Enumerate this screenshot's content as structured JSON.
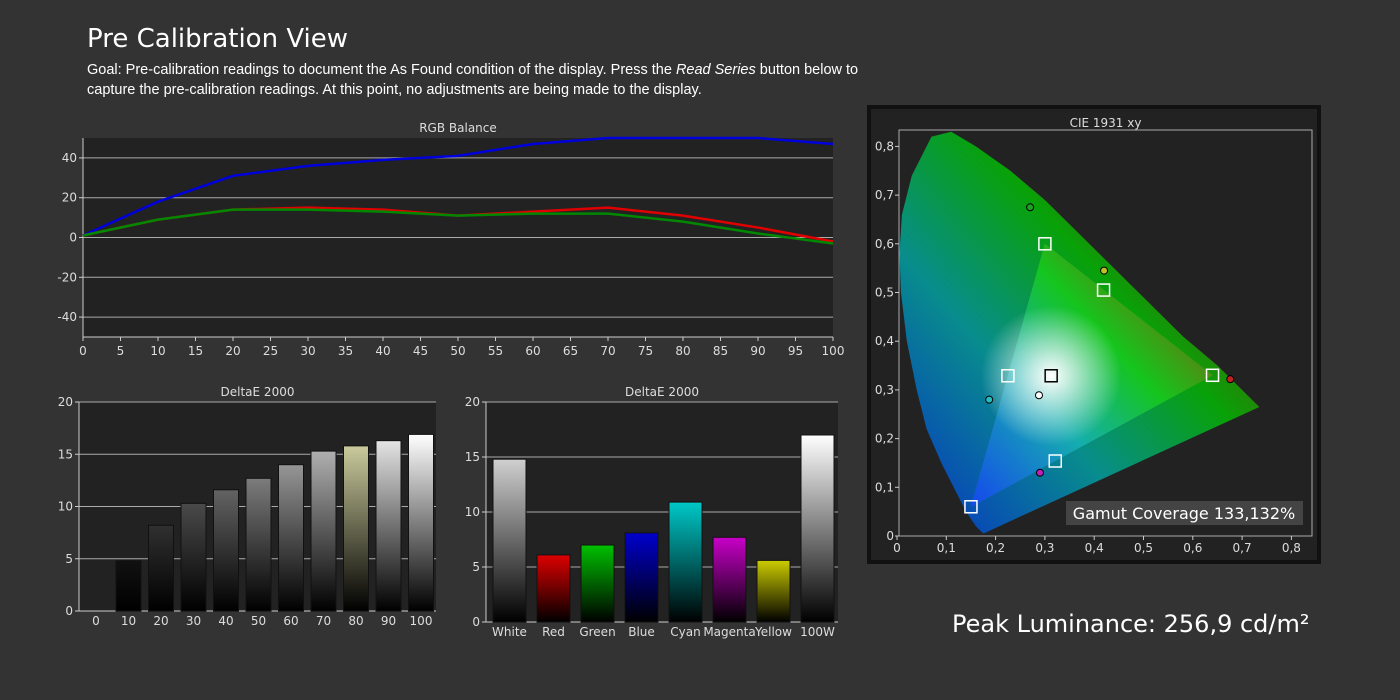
{
  "header": {
    "title": "Pre Calibration View",
    "goal_prefix": "Goal: Pre-calibration readings to document the As Found condition of the display. Press the ",
    "goal_emphasis": "Read Series",
    "goal_suffix": " button below to capture the pre-calibration readings. At this point, no adjustments are being made to the display."
  },
  "peak_luminance": "Peak Luminance: 256,9 cd/m²",
  "colors": {
    "background": "#333333",
    "plot_bg": "#222222",
    "grid": "#aaaaaa",
    "red": "#e00000",
    "green": "#008800",
    "blue": "#0000dd"
  },
  "chart_data": [
    {
      "type": "line",
      "title": "RGB Balance",
      "x": [
        0,
        10,
        20,
        30,
        40,
        50,
        60,
        70,
        80,
        90,
        100
      ],
      "xticks": [
        "0",
        "5",
        "10",
        "15",
        "20",
        "25",
        "30",
        "35",
        "40",
        "45",
        "50",
        "55",
        "60",
        "65",
        "70",
        "75",
        "80",
        "85",
        "90",
        "95",
        "100"
      ],
      "yticks": [
        "40",
        "20",
        "0",
        "-20",
        "-40"
      ],
      "xlim": [
        0,
        100
      ],
      "ylim": [
        -50,
        50
      ],
      "grid": true,
      "series": [
        {
          "color": "#0000dd",
          "values": [
            1,
            18,
            31,
            36,
            39,
            41,
            47,
            50,
            50,
            50,
            47
          ]
        },
        {
          "color": "#e00000",
          "values": [
            1,
            9,
            14,
            15,
            14,
            11,
            13,
            15,
            11,
            5,
            -2
          ]
        },
        {
          "color": "#008800",
          "values": [
            1,
            9,
            14,
            14,
            13,
            11,
            12,
            12,
            8,
            2,
            -3
          ]
        }
      ]
    },
    {
      "type": "bar",
      "title": "DeltaE 2000",
      "categories": [
        "0",
        "10",
        "20",
        "30",
        "40",
        "50",
        "60",
        "70",
        "80",
        "90",
        "100"
      ],
      "values": [
        0,
        4.8,
        8.2,
        10.3,
        11.6,
        12.7,
        14.0,
        15.3,
        15.8,
        16.3,
        16.9
      ],
      "bar_tops": [
        "#000000",
        "#111111",
        "#303030",
        "#4a4a4a",
        "#636363",
        "#7c7c7c",
        "#969696",
        "#b0b0b0",
        "#caca9c",
        "#e4e4e4",
        "#ffffff"
      ],
      "yticks": [
        "20",
        "15",
        "10",
        "5",
        "0"
      ],
      "ylim": [
        0,
        20
      ],
      "grid": true
    },
    {
      "type": "bar",
      "title": "DeltaE 2000",
      "categories": [
        "White",
        "Red",
        "Green",
        "Blue",
        "Cyan",
        "Magenta",
        "Yellow",
        "100W"
      ],
      "values": [
        14.8,
        6.1,
        7.0,
        8.1,
        10.9,
        7.7,
        5.6,
        17.0
      ],
      "bar_colors": [
        "#d0d0d0",
        "#dd0000",
        "#00c000",
        "#0000cc",
        "#00c8c8",
        "#c800c8",
        "#cccc00",
        "#ffffff"
      ],
      "yticks": [
        "20",
        "15",
        "10",
        "5",
        "0"
      ],
      "ylim": [
        0,
        20
      ],
      "grid": true
    },
    {
      "type": "scatter",
      "title": "CIE 1931 xy",
      "xticks": [
        "0",
        "0,1",
        "0,2",
        "0,3",
        "0,4",
        "0,5",
        "0,6",
        "0,7",
        "0,8"
      ],
      "yticks": [
        "0,8",
        "0,7",
        "0,6",
        "0,5",
        "0,4",
        "0,3",
        "0,2",
        "0,1",
        "0"
      ],
      "xlim": [
        0,
        0.8
      ],
      "ylim": [
        0,
        0.8
      ],
      "gamut_coverage": "Gamut Coverage 133,132%",
      "target_gamut": [
        [
          0.64,
          0.33
        ],
        [
          0.3,
          0.6
        ],
        [
          0.15,
          0.06
        ]
      ],
      "targets": [
        [
          0.64,
          0.33
        ],
        [
          0.3,
          0.6
        ],
        [
          0.15,
          0.06
        ],
        [
          0.225,
          0.329
        ],
        [
          0.321,
          0.154
        ],
        [
          0.419,
          0.505
        ],
        [
          0.3127,
          0.329
        ]
      ],
      "measured": [
        {
          "x": 0.676,
          "y": 0.322,
          "color": "#c02020"
        },
        {
          "x": 0.27,
          "y": 0.675,
          "color": "#20a020"
        },
        {
          "x": 0.187,
          "y": 0.28,
          "color": "#20c0c0"
        },
        {
          "x": 0.29,
          "y": 0.13,
          "color": "#c020c0"
        },
        {
          "x": 0.42,
          "y": 0.545,
          "color": "#c0c020"
        },
        {
          "x": 0.288,
          "y": 0.289,
          "color": "#ffffff"
        }
      ]
    }
  ]
}
